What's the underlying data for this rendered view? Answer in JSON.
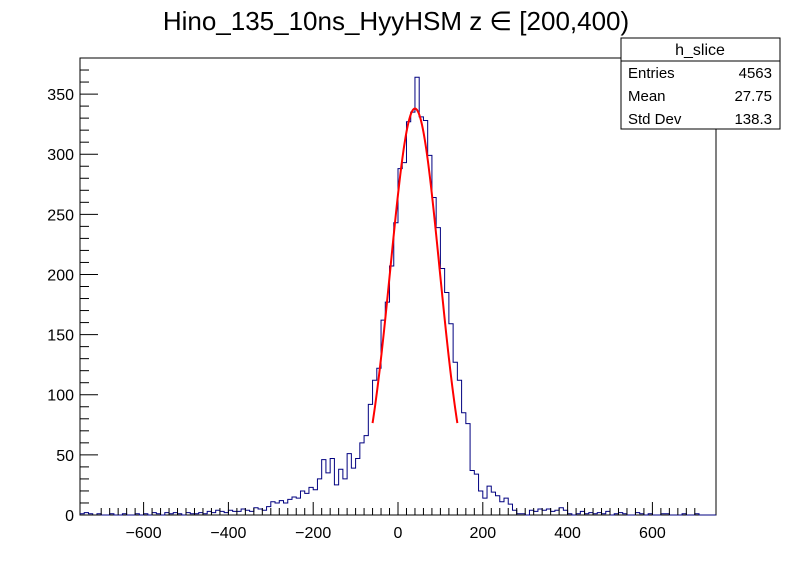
{
  "chart_data": {
    "type": "histogram",
    "title": "Hino_135_10ns_HyyHSM z  ∈ [200,400)",
    "xlim": [
      -750,
      750
    ],
    "ylim": [
      0,
      380
    ],
    "bin_width": 10,
    "x_ticks": [
      -600,
      -400,
      -200,
      0,
      200,
      400,
      600
    ],
    "x_tick_labels": [
      "−600",
      "−400",
      "−200",
      "0",
      "200",
      "400",
      "600"
    ],
    "y_ticks": [
      0,
      50,
      100,
      150,
      200,
      250,
      300,
      350
    ],
    "y_tick_labels": [
      "0",
      "50",
      "100",
      "150",
      "200",
      "250",
      "300",
      "350"
    ],
    "histogram": {
      "color": "#000080",
      "bins": [
        [
          -750,
          1
        ],
        [
          -740,
          2
        ],
        [
          -730,
          1
        ],
        [
          -720,
          0
        ],
        [
          -710,
          1
        ],
        [
          -700,
          0
        ],
        [
          -690,
          0
        ],
        [
          -680,
          1
        ],
        [
          -670,
          0
        ],
        [
          -660,
          0
        ],
        [
          -650,
          1
        ],
        [
          -640,
          0
        ],
        [
          -630,
          0
        ],
        [
          -620,
          1
        ],
        [
          -610,
          0
        ],
        [
          -600,
          1
        ],
        [
          -590,
          0
        ],
        [
          -580,
          2
        ],
        [
          -570,
          1
        ],
        [
          -560,
          0
        ],
        [
          -550,
          2
        ],
        [
          -540,
          1
        ],
        [
          -530,
          2
        ],
        [
          -520,
          1
        ],
        [
          -510,
          0
        ],
        [
          -500,
          2
        ],
        [
          -490,
          1
        ],
        [
          -480,
          1
        ],
        [
          -470,
          2
        ],
        [
          -460,
          1
        ],
        [
          -450,
          3
        ],
        [
          -440,
          2
        ],
        [
          -430,
          4
        ],
        [
          -420,
          3
        ],
        [
          -410,
          2
        ],
        [
          -400,
          4
        ],
        [
          -390,
          3
        ],
        [
          -380,
          3
        ],
        [
          -370,
          5
        ],
        [
          -360,
          4
        ],
        [
          -350,
          3
        ],
        [
          -340,
          6
        ],
        [
          -330,
          5
        ],
        [
          -320,
          4
        ],
        [
          -310,
          7
        ],
        [
          -300,
          11
        ],
        [
          -290,
          10
        ],
        [
          -280,
          12
        ],
        [
          -270,
          10
        ],
        [
          -260,
          13
        ],
        [
          -250,
          15
        ],
        [
          -240,
          14
        ],
        [
          -230,
          20
        ],
        [
          -220,
          18
        ],
        [
          -210,
          23
        ],
        [
          -200,
          21
        ],
        [
          -190,
          30
        ],
        [
          -180,
          46
        ],
        [
          -170,
          35
        ],
        [
          -160,
          47
        ],
        [
          -150,
          25
        ],
        [
          -140,
          38
        ],
        [
          -130,
          30
        ],
        [
          -120,
          51
        ],
        [
          -110,
          39
        ],
        [
          -100,
          47
        ],
        [
          -90,
          60
        ],
        [
          -80,
          66
        ],
        [
          -70,
          92
        ],
        [
          -60,
          112
        ],
        [
          -50,
          122
        ],
        [
          -40,
          162
        ],
        [
          -30,
          177
        ],
        [
          -20,
          207
        ],
        [
          -10,
          243
        ],
        [
          0,
          288
        ],
        [
          10,
          293
        ],
        [
          20,
          327
        ],
        [
          30,
          335
        ],
        [
          40,
          364
        ],
        [
          50,
          331
        ],
        [
          60,
          328
        ],
        [
          70,
          299
        ],
        [
          80,
          264
        ],
        [
          90,
          239
        ],
        [
          100,
          205
        ],
        [
          110,
          185
        ],
        [
          120,
          159
        ],
        [
          130,
          127
        ],
        [
          140,
          112
        ],
        [
          150,
          85
        ],
        [
          160,
          76
        ],
        [
          170,
          37
        ],
        [
          180,
          34
        ],
        [
          190,
          20
        ],
        [
          200,
          14
        ],
        [
          210,
          24
        ],
        [
          220,
          19
        ],
        [
          230,
          16
        ],
        [
          240,
          11
        ],
        [
          250,
          14
        ],
        [
          260,
          9
        ],
        [
          270,
          4
        ],
        [
          280,
          1
        ],
        [
          290,
          1
        ],
        [
          300,
          0
        ],
        [
          310,
          4
        ],
        [
          320,
          3
        ],
        [
          330,
          5
        ],
        [
          340,
          4
        ],
        [
          350,
          5
        ],
        [
          360,
          3
        ],
        [
          370,
          4
        ],
        [
          380,
          6
        ],
        [
          390,
          4
        ],
        [
          400,
          1
        ],
        [
          410,
          0
        ],
        [
          420,
          1
        ],
        [
          430,
          3
        ],
        [
          440,
          1
        ],
        [
          450,
          2
        ],
        [
          460,
          1
        ],
        [
          470,
          2
        ],
        [
          480,
          1
        ],
        [
          490,
          3
        ],
        [
          500,
          0
        ],
        [
          510,
          1
        ],
        [
          520,
          2
        ],
        [
          530,
          1
        ],
        [
          540,
          0
        ],
        [
          550,
          0
        ],
        [
          560,
          2
        ],
        [
          570,
          1
        ],
        [
          580,
          0
        ],
        [
          590,
          1
        ],
        [
          600,
          0
        ],
        [
          610,
          0
        ],
        [
          620,
          1
        ],
        [
          630,
          1
        ],
        [
          640,
          0
        ],
        [
          650,
          0
        ],
        [
          660,
          0
        ],
        [
          670,
          1
        ],
        [
          680,
          0
        ],
        [
          690,
          0
        ],
        [
          700,
          1
        ],
        [
          710,
          0
        ],
        [
          720,
          0
        ],
        [
          730,
          0
        ],
        [
          740,
          0
        ]
      ]
    },
    "fit": {
      "type": "gaussian",
      "color": "#ff0000",
      "amplitude": 338,
      "mean": 40,
      "sigma": 58,
      "range": [
        -60,
        140
      ]
    }
  },
  "stats_box": {
    "title": "h_slice",
    "rows": [
      {
        "label": "Entries",
        "value": "4563"
      },
      {
        "label": "Mean",
        "value": "27.75"
      },
      {
        "label": "Std Dev",
        "value": "138.3"
      }
    ]
  }
}
